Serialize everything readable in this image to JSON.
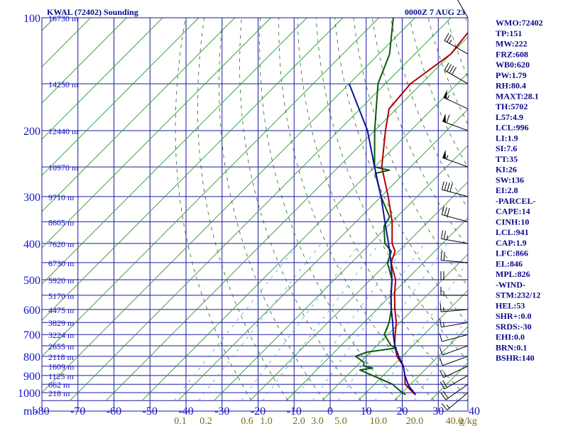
{
  "header": {
    "station": "KWAL (72402) Sounding",
    "time": "0000Z  7 AUG 23"
  },
  "chart_data": {
    "type": "skew-t",
    "pressure_axis": {
      "labels": [
        "100",
        "200",
        "300",
        "400",
        "500",
        "600",
        "700",
        "800",
        "900",
        "1000"
      ],
      "values": [
        100,
        200,
        300,
        400,
        500,
        600,
        700,
        800,
        900,
        1000
      ]
    },
    "heights": [
      {
        "p": 100,
        "label": "16730 m"
      },
      {
        "p": 150,
        "label": "14250 m"
      },
      {
        "p": 200,
        "label": "12440 m"
      },
      {
        "p": 250,
        "label": "10970 m"
      },
      {
        "p": 300,
        "label": "9710 m"
      },
      {
        "p": 350,
        "label": "8605 m"
      },
      {
        "p": 400,
        "label": "7620 m"
      },
      {
        "p": 450,
        "label": "6730 m"
      },
      {
        "p": 500,
        "label": "5920 m"
      },
      {
        "p": 550,
        "label": "5170 m"
      },
      {
        "p": 600,
        "label": "4475 m"
      },
      {
        "p": 650,
        "label": "3829 m"
      },
      {
        "p": 700,
        "label": "3224 m"
      },
      {
        "p": 750,
        "label": "2655 m"
      },
      {
        "p": 800,
        "label": "2118 m"
      },
      {
        "p": 850,
        "label": "1609 m"
      },
      {
        "p": 900,
        "label": "1125 m"
      },
      {
        "p": 950,
        "label": "662 m"
      },
      {
        "p": 1000,
        "label": "218 m"
      }
    ],
    "temperature_axis": {
      "unit_label": "mb",
      "labels": [
        "-80",
        "-70",
        "-60",
        "-50",
        "-40",
        "-30",
        "-20",
        "-10",
        "0",
        "10",
        "20",
        "30",
        "40"
      ],
      "values": [
        -80,
        -70,
        -60,
        -50,
        -40,
        -30,
        -20,
        -10,
        0,
        10,
        20,
        30,
        40
      ]
    },
    "mixing_ratio_labels": [
      {
        "value": 0.1,
        "label": "0.1"
      },
      {
        "value": 0.2,
        "label": "0.2"
      },
      {
        "value": 0.6,
        "label": "0.6"
      },
      {
        "value": 1.0,
        "label": "1.0"
      },
      {
        "value": 2.0,
        "label": "2.0"
      },
      {
        "value": 3.0,
        "label": "3.0"
      },
      {
        "value": 5.0,
        "label": "5.0"
      },
      {
        "value": 10.0,
        "label": "10.0"
      },
      {
        "value": 20.0,
        "label": "20.0"
      },
      {
        "value": 40.0,
        "label": "40.0"
      }
    ],
    "mixing_ratio_unit": "g/kg",
    "series": [
      {
        "role": "temperature",
        "color": "#b00000",
        "points": [
          [
            1013,
            24.3
          ],
          [
            1000,
            23
          ],
          [
            950,
            18.5
          ],
          [
            900,
            16
          ],
          [
            850,
            13
          ],
          [
            800,
            8.5
          ],
          [
            750,
            5
          ],
          [
            700,
            2
          ],
          [
            650,
            -1
          ],
          [
            600,
            -5
          ],
          [
            550,
            -9
          ],
          [
            500,
            -13
          ],
          [
            450,
            -19
          ],
          [
            420,
            -21
          ],
          [
            400,
            -24
          ],
          [
            350,
            -30
          ],
          [
            300,
            -38
          ],
          [
            250,
            -48
          ],
          [
            200,
            -57
          ],
          [
            175,
            -62
          ],
          [
            150,
            -63
          ],
          [
            125,
            -60
          ],
          [
            100,
            -62
          ]
        ]
      },
      {
        "role": "dewpoint",
        "color": "#0a5a0a",
        "points": [
          [
            1013,
            21.5
          ],
          [
            1000,
            20
          ],
          [
            950,
            15
          ],
          [
            900,
            7
          ],
          [
            870,
            2
          ],
          [
            860,
            5
          ],
          [
            850,
            2
          ],
          [
            830,
            1
          ],
          [
            800,
            -3
          ],
          [
            780,
            -1
          ],
          [
            760,
            6
          ],
          [
            750,
            4
          ],
          [
            700,
            -1
          ],
          [
            650,
            -3
          ],
          [
            600,
            -6
          ],
          [
            550,
            -10
          ],
          [
            500,
            -14
          ],
          [
            450,
            -20
          ],
          [
            420,
            -22
          ],
          [
            400,
            -26
          ],
          [
            360,
            -31
          ],
          [
            340,
            -32
          ],
          [
            300,
            -40
          ],
          [
            260,
            -48
          ],
          [
            255,
            -45
          ],
          [
            250,
            -50
          ],
          [
            200,
            -60
          ],
          [
            150,
            -72
          ],
          [
            125,
            -77
          ],
          [
            100,
            -86
          ]
        ]
      },
      {
        "role": "parcel",
        "color": "#1010a0",
        "points": [
          [
            1013,
            24.3
          ],
          [
            960,
            20
          ],
          [
            900,
            16
          ],
          [
            850,
            13
          ],
          [
            800,
            9
          ],
          [
            750,
            5
          ],
          [
            700,
            1.5
          ],
          [
            650,
            -2
          ],
          [
            600,
            -6
          ],
          [
            550,
            -10
          ],
          [
            500,
            -14
          ],
          [
            450,
            -19
          ],
          [
            400,
            -25
          ],
          [
            350,
            -32
          ],
          [
            300,
            -40
          ],
          [
            250,
            -50
          ],
          [
            200,
            -62
          ],
          [
            150,
            -80
          ]
        ]
      }
    ],
    "grid": true
  },
  "wind_barbs": [
    {
      "p": 1000,
      "dir": 230,
      "spd": 15
    },
    {
      "p": 950,
      "dir": 235,
      "spd": 20
    },
    {
      "p": 900,
      "dir": 240,
      "spd": 20
    },
    {
      "p": 850,
      "dir": 245,
      "spd": 15
    },
    {
      "p": 800,
      "dir": 250,
      "spd": 10
    },
    {
      "p": 750,
      "dir": 250,
      "spd": 10
    },
    {
      "p": 700,
      "dir": 255,
      "spd": 10
    },
    {
      "p": 650,
      "dir": 260,
      "spd": 15
    },
    {
      "p": 600,
      "dir": 265,
      "spd": 15
    },
    {
      "p": 550,
      "dir": 270,
      "spd": 15
    },
    {
      "p": 500,
      "dir": 270,
      "spd": 20
    },
    {
      "p": 450,
      "dir": 275,
      "spd": 20
    },
    {
      "p": 400,
      "dir": 280,
      "spd": 25
    },
    {
      "p": 350,
      "dir": 285,
      "spd": 30
    },
    {
      "p": 300,
      "dir": 285,
      "spd": 40
    },
    {
      "p": 250,
      "dir": 290,
      "spd": 55
    },
    {
      "p": 200,
      "dir": 290,
      "spd": 60
    },
    {
      "p": 175,
      "dir": 295,
      "spd": 55
    },
    {
      "p": 150,
      "dir": 300,
      "spd": 40
    },
    {
      "p": 125,
      "dir": 300,
      "spd": 25
    },
    {
      "p": 100,
      "dir": 330,
      "spd": 10
    }
  ],
  "indices": [
    "WMO:72402",
    "TP:151",
    "MW:222",
    "FRZ:608",
    "WB0:620",
    "PW:1.79",
    "RH:80.4",
    "MAXT:28.1",
    "TH:5702",
    "L57:4.9",
    "LCL:996",
    "LI:1.9",
    "SI:7.6",
    "TT:35",
    "KI:26",
    "SW:136",
    "EI:2.8",
    "-PARCEL-",
    "CAPE:14",
    "CINH:10",
    "LCL:941",
    "CAP:1.9",
    "LFC:866",
    "EL:846",
    "MPL:826",
    "-WIND-",
    "STM:232/12",
    "HEL:53",
    "SHR+:0.0",
    "SRDS:-30",
    "EHI:0.0",
    "BRN:0.1",
    "BSHR:140"
  ]
}
